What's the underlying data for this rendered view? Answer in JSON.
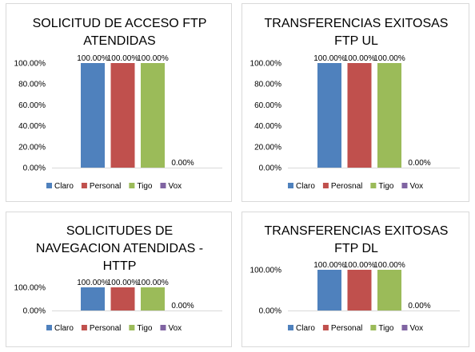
{
  "colors": {
    "Claro": "#4f81bd",
    "Personal": "#c0504d",
    "Tigo": "#9bbb59",
    "Vox": "#8064a2"
  },
  "chart_data": [
    {
      "type": "bar",
      "title_lines": [
        "SOLICITUD DE ACCESO FTP",
        "ATENDIDAS"
      ],
      "categories": [
        "Claro",
        "Personal",
        "Tigo",
        "Vox"
      ],
      "values": [
        100,
        100,
        100,
        0
      ],
      "data_labels": [
        "100.00%",
        "100.00%",
        "100.00%",
        "0.00%"
      ],
      "ylim": [
        0,
        100
      ],
      "yticks": [
        "0.00%",
        "20.00%",
        "40.00%",
        "60.00%",
        "80.00%",
        "100.00%"
      ],
      "legend": [
        "Claro",
        "Personal",
        "Tigo",
        "Vox"
      ],
      "legend_position": "bottom",
      "grid": false
    },
    {
      "type": "bar",
      "title_lines": [
        "TRANSFERENCIAS EXITOSAS",
        "FTP UL"
      ],
      "categories": [
        "Claro",
        "Perosnal",
        "Tigo",
        "Vox"
      ],
      "values": [
        100,
        100,
        100,
        0
      ],
      "data_labels": [
        "100.00%",
        "100.00%",
        "100.00%",
        "0.00%"
      ],
      "ylim": [
        0,
        100
      ],
      "yticks": [
        "0.00%",
        "20.00%",
        "40.00%",
        "60.00%",
        "80.00%",
        "100.00%"
      ],
      "legend": [
        "Claro",
        "Perosnal",
        "Tigo",
        "Vox"
      ],
      "legend_position": "bottom",
      "grid": false
    },
    {
      "type": "bar",
      "title_lines": [
        "SOLICITUDES DE",
        "NAVEGACION ATENDIDAS -",
        "HTTP"
      ],
      "categories": [
        "Claro",
        "Personal",
        "Tigo",
        "Vox"
      ],
      "values": [
        100,
        100,
        100,
        0
      ],
      "data_labels": [
        "100.00%",
        "100.00%",
        "100.00%",
        "0.00%"
      ],
      "ylim": [
        0,
        100
      ],
      "yticks": [
        "0.00%",
        "100.00%"
      ],
      "legend": [
        "Claro",
        "Personal",
        "Tigo",
        "Vox"
      ],
      "legend_position": "bottom",
      "grid": false
    },
    {
      "type": "bar",
      "title_lines": [
        "TRANSFERENCIAS EXITOSAS",
        "FTP DL"
      ],
      "categories": [
        "Claro",
        "Personal",
        "Tigo",
        "Vox"
      ],
      "values": [
        100,
        100,
        100,
        0
      ],
      "data_labels": [
        "100.00%",
        "100.00%",
        "100.00%",
        "0.00%"
      ],
      "ylim": [
        0,
        100
      ],
      "yticks": [
        "0.00%",
        "100.00%"
      ],
      "legend": [
        "Claro",
        "Personal",
        "Tigo",
        "Vox"
      ],
      "legend_position": "bottom",
      "grid": false
    }
  ]
}
